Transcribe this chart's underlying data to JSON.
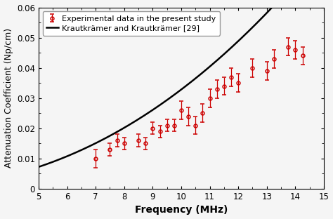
{
  "title": "",
  "xlabel": "Frequency (MHz)",
  "ylabel": "Attenuation Coefficient (Np/cm)",
  "xlim": [
    5,
    15
  ],
  "ylim": [
    0,
    0.06
  ],
  "yticks": [
    0,
    0.01,
    0.02,
    0.03,
    0.04,
    0.05,
    0.06
  ],
  "xticks": [
    5,
    6,
    7,
    8,
    9,
    10,
    11,
    12,
    13,
    14,
    15
  ],
  "exp_x": [
    7.0,
    7.5,
    7.75,
    8.0,
    8.5,
    8.75,
    9.0,
    9.25,
    9.5,
    9.75,
    10.0,
    10.25,
    10.5,
    10.75,
    11.0,
    11.25,
    11.5,
    11.75,
    12.0,
    12.5,
    13.0,
    13.25,
    13.75,
    14.0,
    14.25
  ],
  "exp_y": [
    0.01,
    0.013,
    0.016,
    0.015,
    0.016,
    0.015,
    0.02,
    0.019,
    0.021,
    0.021,
    0.026,
    0.024,
    0.021,
    0.025,
    0.03,
    0.033,
    0.034,
    0.037,
    0.035,
    0.04,
    0.039,
    0.043,
    0.047,
    0.046,
    0.044
  ],
  "exp_yerr": [
    0.003,
    0.002,
    0.002,
    0.002,
    0.002,
    0.002,
    0.002,
    0.002,
    0.002,
    0.002,
    0.003,
    0.003,
    0.003,
    0.003,
    0.003,
    0.003,
    0.003,
    0.003,
    0.003,
    0.003,
    0.003,
    0.003,
    0.003,
    0.003,
    0.003
  ],
  "ref_label": "Krautkrämer and Krautkrämer [29]",
  "exp_label": "Experimental data in the present study",
  "ref_color": "#000000",
  "exp_color": "#cc0000",
  "bg_color": "#f5f5f5",
  "ref_coeff": 0.000217,
  "ref_exp": 2.18,
  "legend_fontsize": 8,
  "axis_label_fontsize": 10,
  "ylabel_fontsize": 9,
  "tick_fontsize": 8.5
}
